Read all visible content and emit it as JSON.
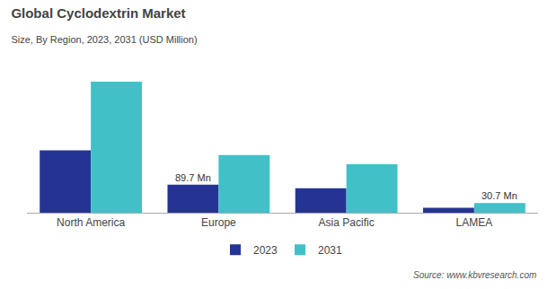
{
  "chart_data": {
    "type": "bar",
    "title": "Global Cyclodextrin Market",
    "subtitle": "Size, By Region, 2023, 2031 (USD Million)",
    "source": "Source: www.kbvresearch.com",
    "categories": [
      "North America",
      "Europe",
      "Asia Pacific",
      "LAMEA"
    ],
    "series": [
      {
        "name": "2023",
        "color": "#253494",
        "values": [
          200,
          89.7,
          78,
          16
        ]
      },
      {
        "name": "2031",
        "color": "#41c0c8",
        "values": [
          420,
          185,
          155,
          30.7
        ]
      }
    ],
    "annotations": [
      {
        "text": "89.7 Mn",
        "series": "2023",
        "category": "Europe"
      },
      {
        "text": "30.7 Mn",
        "series": "2031",
        "category": "LAMEA"
      }
    ],
    "ylim": [
      0,
      480
    ],
    "grid": false,
    "legend": "bottom",
    "tick_labels": "x"
  }
}
